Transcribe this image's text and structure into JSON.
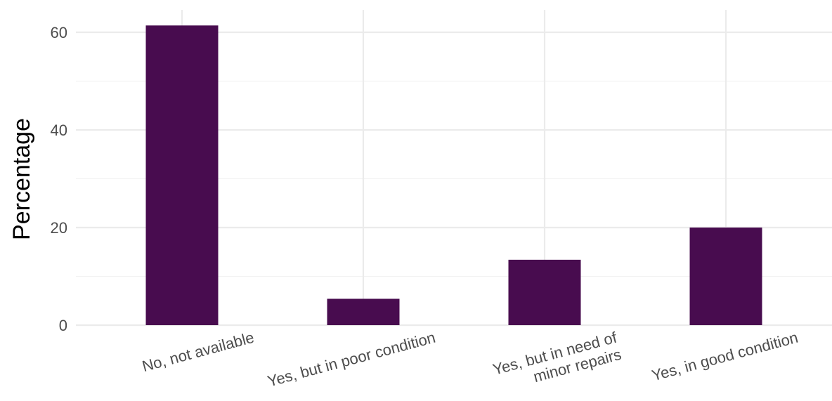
{
  "chart_data": {
    "type": "bar",
    "categories": [
      [
        "No, not available"
      ],
      [
        "Yes, but in poor condition"
      ],
      [
        "Yes, but in need of",
        "minor repairs"
      ],
      [
        "Yes, in good condition"
      ]
    ],
    "values": [
      61.4,
      5.4,
      13.4,
      20.0
    ],
    "ylabel": "Percentage",
    "xlabel": "",
    "title": "",
    "ylim": [
      0,
      65
    ],
    "yticks": [
      0,
      20,
      40,
      60
    ],
    "grid": true,
    "bar_color": "#480c4f",
    "legend": "none"
  }
}
